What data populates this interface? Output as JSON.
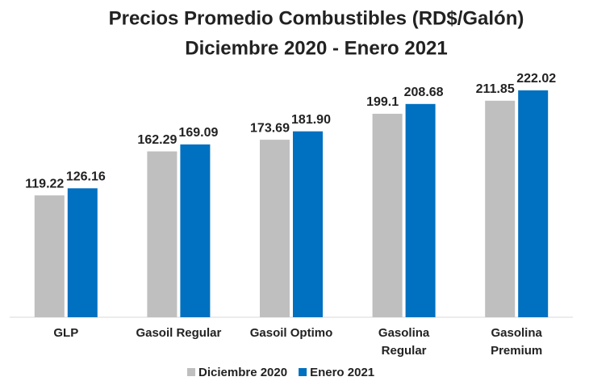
{
  "chart_data": {
    "type": "bar",
    "title": "Precios Promedio Combustibles (RD$/Galón)",
    "subtitle": "Diciembre 2020 - Enero 2021",
    "categories": [
      "GLP",
      "Gasoil Regular",
      "Gasoil Optimo",
      "Gasolina\nRegular",
      "Gasolina\nPremium"
    ],
    "series": [
      {
        "name": "Diciembre 2020",
        "color": "#bfbfbf",
        "values": [
          119.22,
          162.29,
          173.69,
          199.1,
          211.85
        ]
      },
      {
        "name": "Enero 2021",
        "color": "#0070c0",
        "values": [
          126.16,
          169.09,
          181.9,
          208.68,
          222.02
        ],
        "value_labels": [
          "126.16",
          "169.09",
          "181.90",
          "208.68",
          "222.02"
        ]
      }
    ],
    "ylim": [
      0,
      250
    ],
    "legend": "bottom"
  }
}
